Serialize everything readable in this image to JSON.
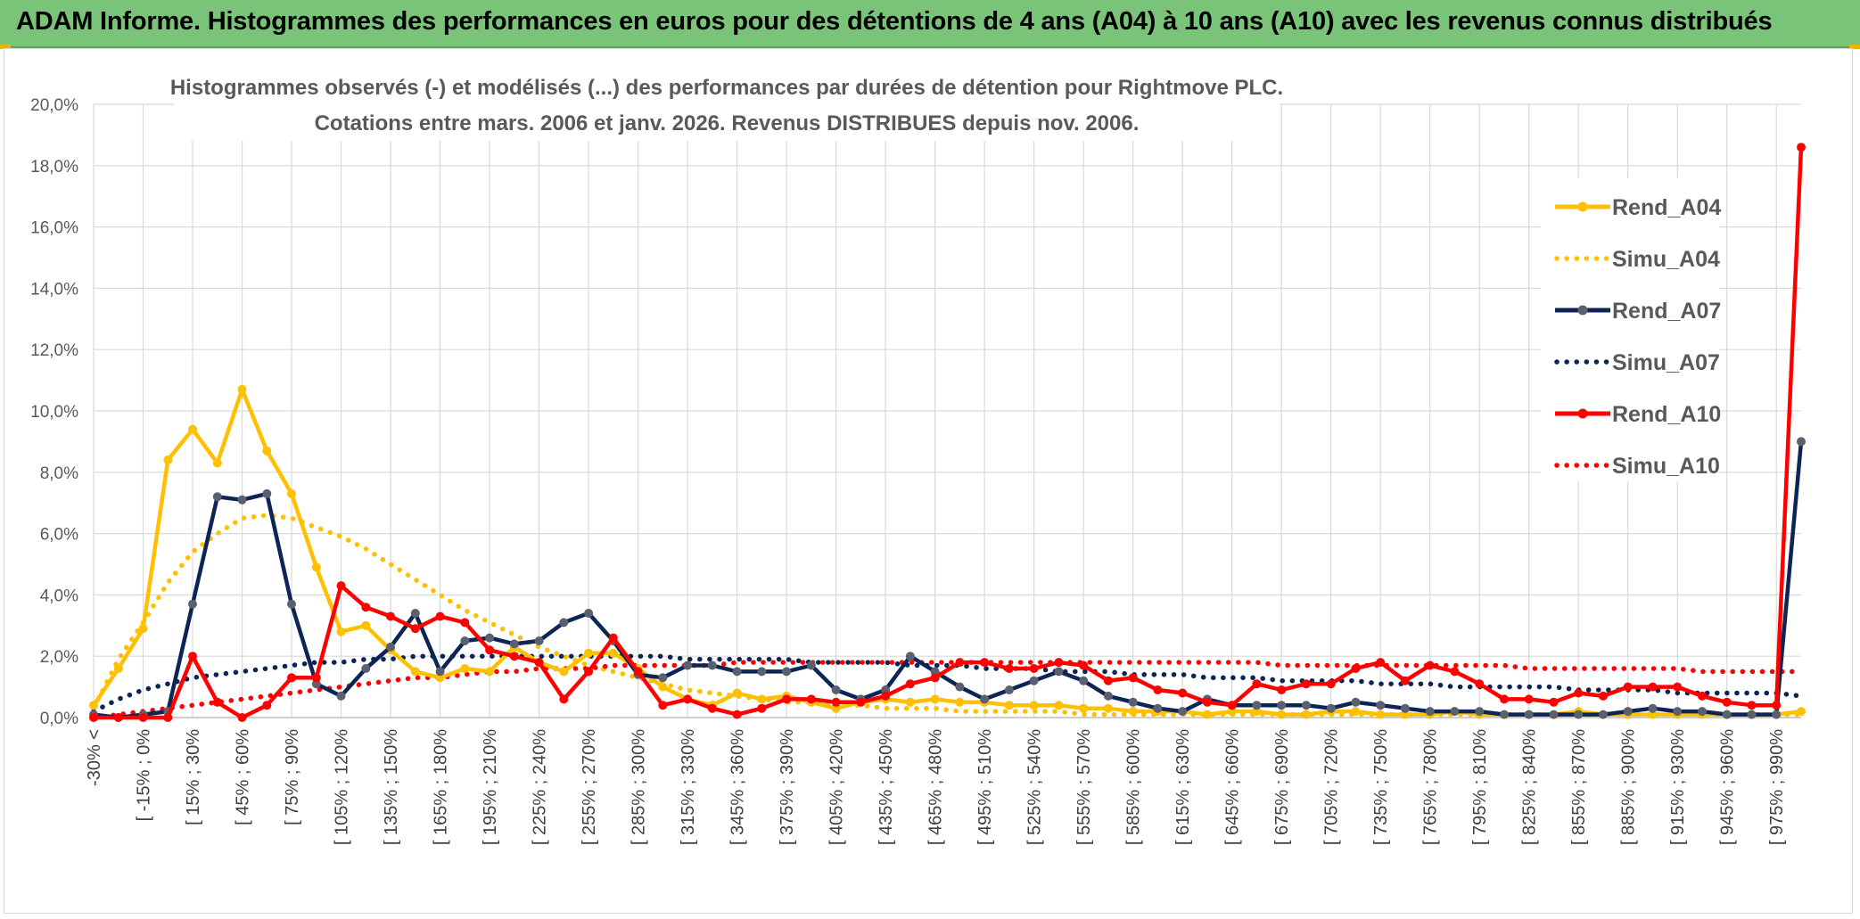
{
  "banner": {
    "title": "ADAM Informe. Histogrammes des performances en euros pour des détentions de 4 ans (A04) à 10 ans (A10) avec les revenus connus distribués"
  },
  "colors": {
    "banner_bg": "#7ac47a",
    "a04": "#ffc000",
    "a07": "#0d2456",
    "a10": "#ff0000",
    "grid": "#d9d9d9",
    "marker_a07": "#5a6070"
  },
  "chart_data": {
    "type": "line",
    "title": [
      "Histogrammes observés (-) et modélisés (...) des performances par durées de détention pour Rightmove PLC.",
      "Cotations entre mars. 2006 et janv. 2026. Revenus DISTRIBUES depuis nov. 2006."
    ],
    "xlabel": "",
    "ylabel": "",
    "ylim": [
      0,
      20
    ],
    "yticks": [
      "0,0%",
      "2,0%",
      "4,0%",
      "6,0%",
      "8,0%",
      "10,0%",
      "12,0%",
      "14,0%",
      "16,0%",
      "18,0%",
      "20,0%"
    ],
    "grid": true,
    "legend_position": "right",
    "n_categories": 70,
    "category_labels": [
      {
        "index": 0,
        "label": "-30% <"
      },
      {
        "index": 2,
        "label": "[ -15% ; 0%"
      },
      {
        "index": 4,
        "label": "[ 15% ; 30%"
      },
      {
        "index": 6,
        "label": "[ 45% ; 60%"
      },
      {
        "index": 8,
        "label": "[ 75% ; 90%"
      },
      {
        "index": 10,
        "label": "[ 105% ; 120%"
      },
      {
        "index": 12,
        "label": "[ 135% ; 150%"
      },
      {
        "index": 14,
        "label": "[ 165% ; 180%"
      },
      {
        "index": 16,
        "label": "[ 195% ; 210%"
      },
      {
        "index": 18,
        "label": "[ 225% ; 240%"
      },
      {
        "index": 20,
        "label": "[ 255% ; 270%"
      },
      {
        "index": 22,
        "label": "[ 285% ; 300%"
      },
      {
        "index": 24,
        "label": "[ 315% ; 330%"
      },
      {
        "index": 26,
        "label": "[ 345% ; 360%"
      },
      {
        "index": 28,
        "label": "[ 375% ; 390%"
      },
      {
        "index": 30,
        "label": "[ 405% ; 420%"
      },
      {
        "index": 32,
        "label": "[ 435% ; 450%"
      },
      {
        "index": 34,
        "label": "[ 465% ; 480%"
      },
      {
        "index": 36,
        "label": "[ 495% ; 510%"
      },
      {
        "index": 38,
        "label": "[ 525% ; 540%"
      },
      {
        "index": 40,
        "label": "[ 555% ; 570%"
      },
      {
        "index": 42,
        "label": "[ 585% ; 600%"
      },
      {
        "index": 44,
        "label": "[ 615% ; 630%"
      },
      {
        "index": 46,
        "label": "[ 645% ; 660%"
      },
      {
        "index": 48,
        "label": "[ 675% ; 690%"
      },
      {
        "index": 50,
        "label": "[ 705% ; 720%"
      },
      {
        "index": 52,
        "label": "[ 735% ; 750%"
      },
      {
        "index": 54,
        "label": "[ 765% ; 780%"
      },
      {
        "index": 56,
        "label": "[ 795% ; 810%"
      },
      {
        "index": 58,
        "label": "[ 825% ; 840%"
      },
      {
        "index": 60,
        "label": "[ 855% ; 870%"
      },
      {
        "index": 62,
        "label": "[ 885% ; 900%"
      },
      {
        "index": 64,
        "label": "[ 915% ; 930%"
      },
      {
        "index": 66,
        "label": "[ 945% ; 960%"
      },
      {
        "index": 68,
        "label": "[ 975% ; 990%"
      }
    ],
    "series": [
      {
        "name": "Rend_A04",
        "kind": "observed",
        "color": "#ffc000",
        "values": [
          0.4,
          1.6,
          2.9,
          8.4,
          9.4,
          8.3,
          10.7,
          8.7,
          7.3,
          4.9,
          2.8,
          3.0,
          2.2,
          1.5,
          1.3,
          1.6,
          1.5,
          2.3,
          1.8,
          1.5,
          2.1,
          2.1,
          1.6,
          1.0,
          0.6,
          0.4,
          0.8,
          0.6,
          0.7,
          0.5,
          0.3,
          0.5,
          0.6,
          0.5,
          0.6,
          0.5,
          0.5,
          0.4,
          0.4,
          0.4,
          0.3,
          0.3,
          0.2,
          0.2,
          0.2,
          0.1,
          0.2,
          0.2,
          0.1,
          0.1,
          0.2,
          0.2,
          0.1,
          0.1,
          0.1,
          0.2,
          0.1,
          0.1,
          0.1,
          0.1,
          0.2,
          0.1,
          0.1,
          0.1,
          0.1,
          0.1,
          0.1,
          0.1,
          0.1,
          0.2
        ]
      },
      {
        "name": "Simu_A04",
        "kind": "modeled",
        "color": "#ffc000",
        "values": [
          0.3,
          1.9,
          3.1,
          4.4,
          5.4,
          6.0,
          6.5,
          6.6,
          6.5,
          6.2,
          5.9,
          5.5,
          5.0,
          4.5,
          4.0,
          3.5,
          3.1,
          2.7,
          2.3,
          2.0,
          1.7,
          1.5,
          1.3,
          1.1,
          0.9,
          0.8,
          0.7,
          0.6,
          0.5,
          0.5,
          0.4,
          0.4,
          0.3,
          0.3,
          0.3,
          0.2,
          0.2,
          0.2,
          0.2,
          0.2,
          0.1,
          0.1,
          0.1,
          0.1,
          0.1,
          0.1,
          0.1,
          0.1,
          0.1,
          0.1,
          0.1,
          0.1,
          0.1,
          0.1,
          0.1,
          0.1,
          0.1,
          0.1,
          0.1,
          0.1,
          0.1,
          0.1,
          0.1,
          0.1,
          0.1,
          0.1,
          0.1,
          0.1,
          0.1,
          0.1
        ]
      },
      {
        "name": "Rend_A07",
        "kind": "observed",
        "color": "#0d2456",
        "values": [
          0.1,
          0.0,
          0.1,
          0.2,
          3.7,
          7.2,
          7.1,
          7.3,
          3.7,
          1.1,
          0.7,
          1.6,
          2.3,
          3.4,
          1.5,
          2.5,
          2.6,
          2.4,
          2.5,
          3.1,
          3.4,
          2.5,
          1.4,
          1.3,
          1.7,
          1.7,
          1.5,
          1.5,
          1.5,
          1.7,
          0.9,
          0.6,
          0.9,
          2.0,
          1.5,
          1.0,
          0.6,
          0.9,
          1.2,
          1.5,
          1.2,
          0.7,
          0.5,
          0.3,
          0.2,
          0.6,
          0.4,
          0.4,
          0.4,
          0.4,
          0.3,
          0.5,
          0.4,
          0.3,
          0.2,
          0.2,
          0.2,
          0.1,
          0.1,
          0.1,
          0.1,
          0.1,
          0.2,
          0.3,
          0.2,
          0.2,
          0.1,
          0.1,
          0.1,
          9.0
        ]
      },
      {
        "name": "Simu_A07",
        "kind": "modeled",
        "color": "#0d2456",
        "values": [
          0.2,
          0.6,
          0.9,
          1.1,
          1.3,
          1.4,
          1.5,
          1.6,
          1.7,
          1.8,
          1.8,
          1.9,
          1.9,
          2.0,
          2.0,
          2.0,
          2.0,
          2.0,
          2.0,
          2.0,
          2.0,
          2.0,
          2.0,
          2.0,
          1.9,
          1.9,
          1.9,
          1.9,
          1.9,
          1.8,
          1.8,
          1.8,
          1.8,
          1.7,
          1.7,
          1.7,
          1.6,
          1.6,
          1.6,
          1.5,
          1.5,
          1.5,
          1.4,
          1.4,
          1.4,
          1.3,
          1.3,
          1.3,
          1.2,
          1.2,
          1.2,
          1.2,
          1.1,
          1.1,
          1.1,
          1.0,
          1.0,
          1.0,
          1.0,
          1.0,
          0.9,
          0.9,
          0.9,
          0.9,
          0.8,
          0.8,
          0.8,
          0.8,
          0.8,
          0.7
        ]
      },
      {
        "name": "Rend_A10",
        "kind": "observed",
        "color": "#ff0000",
        "values": [
          0.0,
          0.0,
          0.0,
          0.0,
          2.0,
          0.5,
          0.0,
          0.4,
          1.3,
          1.3,
          4.3,
          3.6,
          3.3,
          2.9,
          3.3,
          3.1,
          2.2,
          2.0,
          1.8,
          0.6,
          1.5,
          2.6,
          1.5,
          0.4,
          0.6,
          0.3,
          0.1,
          0.3,
          0.6,
          0.6,
          0.5,
          0.5,
          0.7,
          1.1,
          1.3,
          1.8,
          1.8,
          1.6,
          1.6,
          1.8,
          1.7,
          1.2,
          1.3,
          0.9,
          0.8,
          0.5,
          0.4,
          1.1,
          0.9,
          1.1,
          1.1,
          1.6,
          1.8,
          1.2,
          1.7,
          1.5,
          1.1,
          0.6,
          0.6,
          0.5,
          0.8,
          0.7,
          1.0,
          1.0,
          1.0,
          0.7,
          0.5,
          0.4,
          0.4,
          18.6
        ]
      },
      {
        "name": "Simu_A10",
        "kind": "modeled",
        "color": "#ff0000",
        "values": [
          0.0,
          0.1,
          0.2,
          0.3,
          0.4,
          0.5,
          0.6,
          0.7,
          0.8,
          0.9,
          1.0,
          1.1,
          1.2,
          1.3,
          1.3,
          1.4,
          1.5,
          1.5,
          1.6,
          1.6,
          1.6,
          1.7,
          1.7,
          1.7,
          1.7,
          1.7,
          1.8,
          1.8,
          1.8,
          1.8,
          1.8,
          1.8,
          1.8,
          1.8,
          1.8,
          1.8,
          1.8,
          1.8,
          1.8,
          1.8,
          1.8,
          1.8,
          1.8,
          1.8,
          1.8,
          1.8,
          1.8,
          1.8,
          1.7,
          1.7,
          1.7,
          1.7,
          1.7,
          1.7,
          1.7,
          1.7,
          1.7,
          1.7,
          1.6,
          1.6,
          1.6,
          1.6,
          1.6,
          1.6,
          1.6,
          1.5,
          1.5,
          1.5,
          1.5,
          1.5
        ]
      }
    ]
  }
}
